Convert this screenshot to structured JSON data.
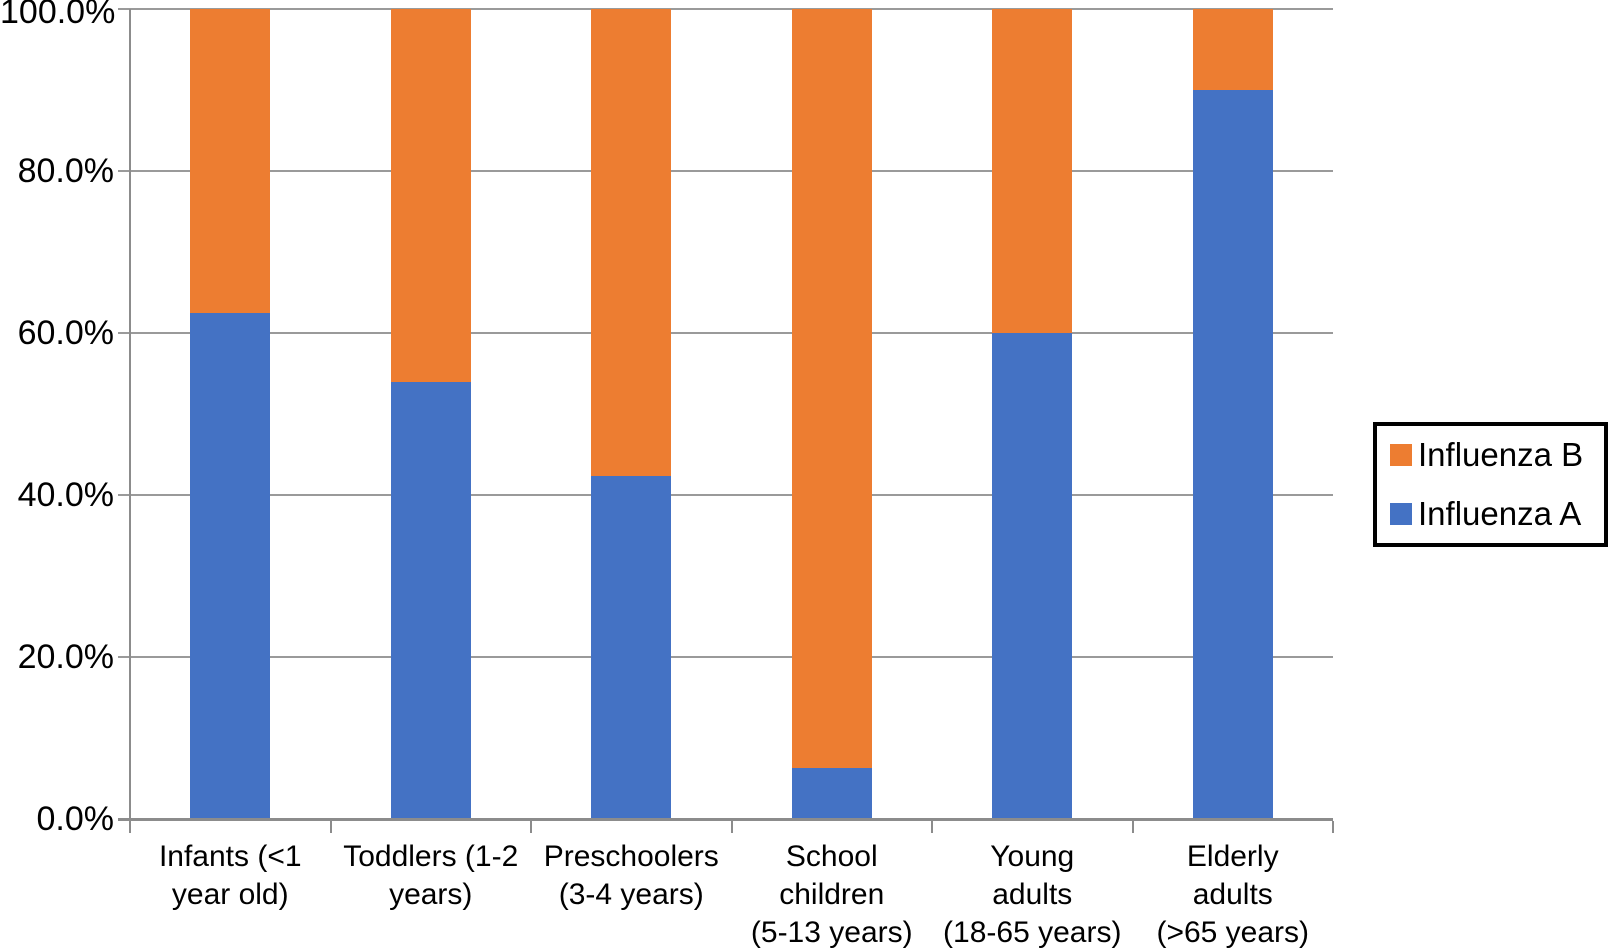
{
  "chart_data": {
    "type": "bar",
    "variant": "stacked-100-percent",
    "title": "",
    "xlabel": "",
    "ylabel": "",
    "ylim": [
      0,
      100
    ],
    "grid": true,
    "legend_position": "right",
    "categories": [
      "Infants (<1 year old)",
      "Toddlers (1-2 years)",
      "Preschoolers (3-4 years)",
      "School children (5-13 years)",
      "Young adults (18-65 years)",
      "Elderly adults (>65 years)"
    ],
    "category_label_lines": [
      [
        "Infants (<1",
        "year old)"
      ],
      [
        "Toddlers (1-2",
        "years)"
      ],
      [
        "Preschoolers",
        "(3-4 years)"
      ],
      [
        "School",
        "children",
        "(5-13 years)"
      ],
      [
        "Young",
        "adults",
        "(18-65 years)"
      ],
      [
        "Elderly",
        "adults",
        "(>65 years)"
      ]
    ],
    "series": [
      {
        "name": "Influenza A",
        "color": "#4472C4",
        "values": [
          62.5,
          54.0,
          42.3,
          6.3,
          60.0,
          90.0
        ]
      },
      {
        "name": "Influenza B",
        "color": "#ED7D31",
        "values": [
          37.5,
          46.0,
          57.7,
          93.7,
          40.0,
          10.0
        ]
      }
    ],
    "yticks": [
      {
        "value": 0,
        "label": "0.0%"
      },
      {
        "value": 20,
        "label": "20.0%"
      },
      {
        "value": 40,
        "label": "40.0%"
      },
      {
        "value": 60,
        "label": "60.0%"
      },
      {
        "value": 80,
        "label": "80.0%"
      },
      {
        "value": 100,
        "label": "100.0%"
      }
    ]
  },
  "legend": {
    "items": [
      {
        "label": "Influenza B",
        "color": "#ED7D31"
      },
      {
        "label": "Influenza A",
        "color": "#4472C4"
      }
    ]
  },
  "colors": {
    "influenza_a": "#4472C4",
    "influenza_b": "#ED7D31",
    "gridline": "#9a9a9a",
    "axis": "#8c8c8c",
    "legend_border": "#000000",
    "background": "#ffffff"
  }
}
